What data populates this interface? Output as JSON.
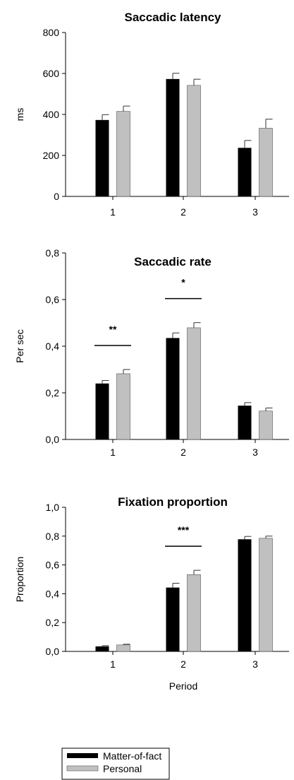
{
  "series_names": [
    "Matter-of-fact",
    "Personal"
  ],
  "series_colors": [
    "#000000",
    "#c0c0c0"
  ],
  "chart_data": [
    {
      "type": "bar",
      "title": "Saccadic latency",
      "ylabel": "ms",
      "xlabel": "",
      "categories": [
        "1",
        "2",
        "3"
      ],
      "ylim": [
        0,
        800
      ],
      "yticks": [
        "0",
        "200",
        "400",
        "600",
        "800"
      ],
      "series": [
        {
          "name": "Matter-of-fact",
          "values": [
            373,
            573,
            237
          ],
          "errors": [
            26,
            28,
            36
          ]
        },
        {
          "name": "Personal",
          "values": [
            415,
            542,
            333
          ],
          "errors": [
            26,
            30,
            44
          ]
        }
      ],
      "significance": []
    },
    {
      "type": "bar",
      "title": "Saccadic rate",
      "ylabel": "Per sec",
      "xlabel": "",
      "categories": [
        "1",
        "2",
        "3"
      ],
      "ylim": [
        0,
        0.8
      ],
      "yticks": [
        "0,0",
        "0,2",
        "0,4",
        "0,6",
        "0,8"
      ],
      "series": [
        {
          "name": "Matter-of-fact",
          "values": [
            0.24,
            0.435,
            0.145
          ],
          "errors": [
            0.013,
            0.022,
            0.013
          ]
        },
        {
          "name": "Personal",
          "values": [
            0.282,
            0.479,
            0.122
          ],
          "errors": [
            0.018,
            0.022,
            0.013
          ]
        }
      ],
      "significance": [
        {
          "category": "1",
          "label": "**"
        },
        {
          "category": "2",
          "label": "*"
        }
      ]
    },
    {
      "type": "bar",
      "title": "Fixation proportion",
      "ylabel": "Proportion",
      "xlabel": "Period",
      "categories": [
        "1",
        "2",
        "3"
      ],
      "ylim": [
        0,
        1.0
      ],
      "yticks": [
        "0,0",
        "0,2",
        "0,4",
        "0,6",
        "0,8",
        "1,0"
      ],
      "series": [
        {
          "name": "Matter-of-fact",
          "values": [
            0.035,
            0.443,
            0.778
          ],
          "errors": [
            0.005,
            0.03,
            0.02
          ]
        },
        {
          "name": "Personal",
          "values": [
            0.045,
            0.533,
            0.785
          ],
          "errors": [
            0.005,
            0.03,
            0.015
          ]
        }
      ],
      "significance": [
        {
          "category": "2",
          "label": "***"
        }
      ]
    }
  ]
}
